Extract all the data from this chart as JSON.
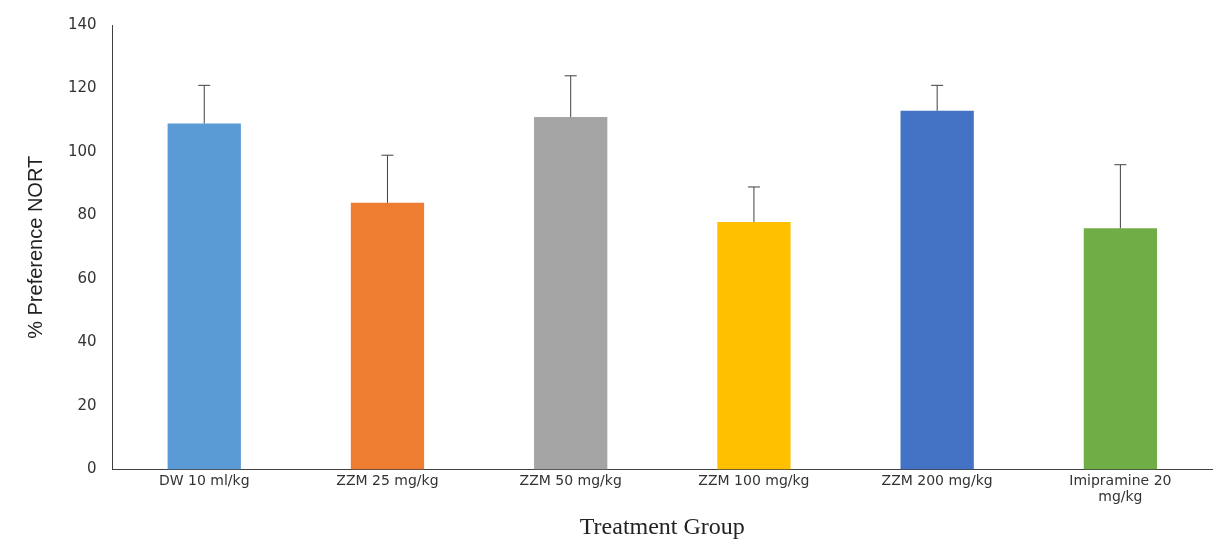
{
  "chart_data": {
    "type": "bar",
    "xlabel": "Treatment Group",
    "ylabel": "% Preference NORT",
    "categories": [
      "DW 10 ml/kg",
      "ZZM 25 mg/kg",
      "ZZM 50 mg/kg",
      "ZZM 100 mg/kg",
      "ZZM 200 mg/kg",
      "Imipramine 20 mg/kg"
    ],
    "values": [
      109,
      84,
      111,
      78,
      113,
      76
    ],
    "colors": [
      "#5b9bd5",
      "#ed7d31",
      "#a5a5a5",
      "#ffc000",
      "#4472c4",
      "#70ad47"
    ],
    "errors": [
      [
        109,
        121
      ],
      [
        84,
        99
      ],
      [
        111,
        124
      ],
      [
        78,
        89
      ],
      [
        113,
        121
      ],
      [
        76,
        96
      ]
    ],
    "ylim": [
      0,
      140
    ],
    "yticks": [
      0,
      20,
      40,
      60,
      80,
      100,
      120,
      140
    ],
    "grid": false,
    "legend": false
  }
}
